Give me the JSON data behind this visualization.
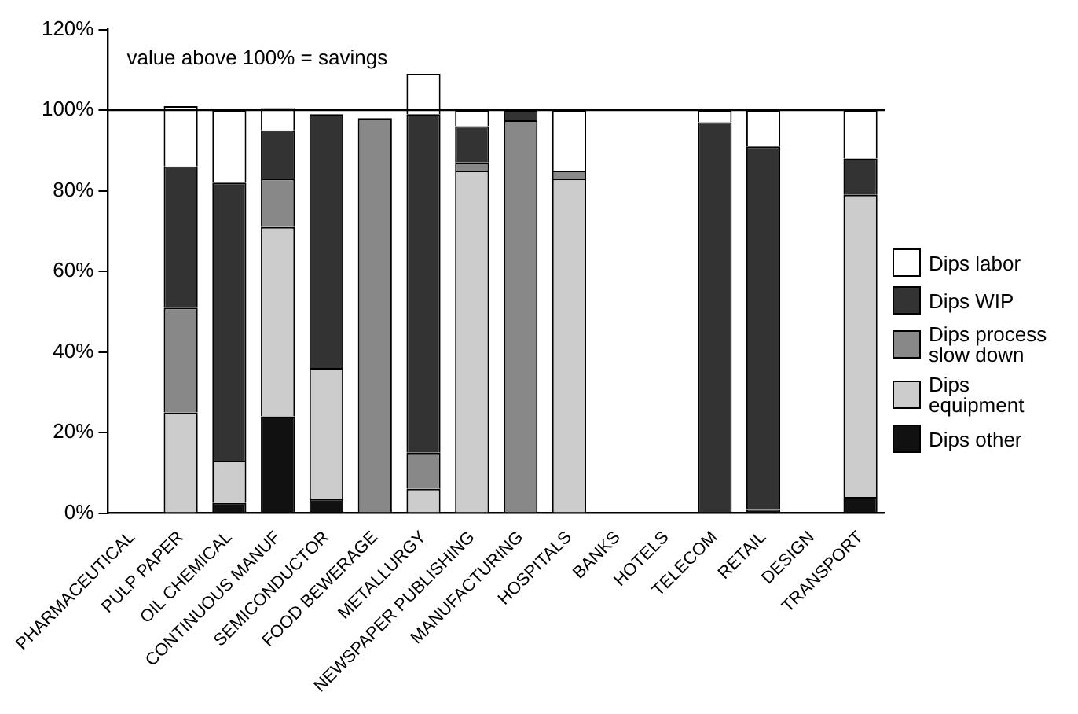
{
  "chart_data": {
    "type": "bar",
    "stacked": true,
    "categories": [
      "PHARMACEUTICAL",
      "PULP PAPER",
      "OIL CHEMICAL",
      "CONTINUOUS MANUF",
      "SEMICONDUCTOR",
      "FOOD BEWERAGE",
      "METALLURGY",
      "NEWSPAPER PUBLISHING",
      "MANUFACTURING",
      "HOSPITALS",
      "BANKS",
      "HOTELS",
      "TELECOM",
      "RETAIL",
      "DESIGN",
      "TRANSPORT"
    ],
    "series": [
      {
        "name": "Dips other",
        "color": "#111111",
        "values": [
          null,
          null,
          2.5,
          24,
          3.5,
          null,
          null,
          null,
          null,
          null,
          null,
          null,
          null,
          1,
          null,
          4
        ]
      },
      {
        "name": "Dips equipment",
        "color": "#cccccc",
        "values": [
          null,
          25,
          10.5,
          47,
          32.5,
          null,
          6,
          85,
          null,
          83,
          null,
          null,
          null,
          null,
          null,
          75
        ]
      },
      {
        "name": "Dips process slow down",
        "color": "#888888",
        "values": [
          null,
          26,
          null,
          12,
          null,
          98,
          9,
          2,
          97.5,
          2,
          null,
          null,
          null,
          null,
          null,
          null
        ]
      },
      {
        "name": "Dips WIP",
        "color": "#333333",
        "values": [
          null,
          35,
          69,
          12,
          63,
          null,
          84,
          9,
          2.5,
          null,
          null,
          null,
          97,
          90,
          null,
          9
        ]
      },
      {
        "name": "Dips labor",
        "color": "#ffffff",
        "values": [
          null,
          15,
          18,
          5.5,
          null,
          null,
          10,
          4,
          null,
          15,
          null,
          null,
          3,
          9,
          null,
          12
        ]
      }
    ],
    "ylim": [
      0,
      120
    ],
    "yticks": [
      {
        "value": 0,
        "label": "0%"
      },
      {
        "value": 20,
        "label": "20%"
      },
      {
        "value": 40,
        "label": "40%"
      },
      {
        "value": 60,
        "label": "60%"
      },
      {
        "value": 80,
        "label": "80%"
      },
      {
        "value": 100,
        "label": "100%"
      },
      {
        "value": 120,
        "label": "120%"
      }
    ],
    "ref_lines": [
      {
        "axis": "y",
        "value": 100,
        "color": "#000000"
      }
    ],
    "annotations": [
      "value above 100% = savings"
    ],
    "grid": false,
    "legend": "right"
  }
}
